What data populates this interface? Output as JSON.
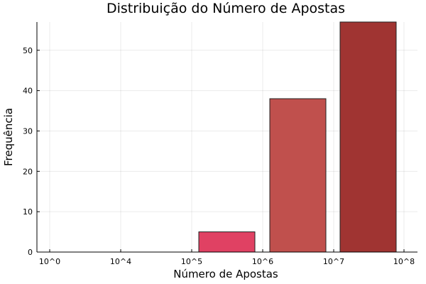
{
  "chart_data": {
    "type": "bar",
    "title": "Distribuição do Número de Apostas",
    "xlabel": "Número de Apostas",
    "ylabel": "Frequência",
    "x_ticks": [
      "10^0",
      "10^4",
      "10^5",
      "10^6",
      "10^7",
      "10^8"
    ],
    "y_ticks": [
      0,
      10,
      20,
      30,
      40,
      50
    ],
    "ylim": [
      0,
      57
    ],
    "grid": true,
    "legend": "none",
    "bars": [
      {
        "category": "10^5 – 10^6",
        "value": 5,
        "color": "#e04163"
      },
      {
        "category": "10^6 – 10^7",
        "value": 38,
        "color": "#c0504d"
      },
      {
        "category": "10^7 – 10^8",
        "value": 57,
        "color": "#a03432"
      }
    ]
  }
}
